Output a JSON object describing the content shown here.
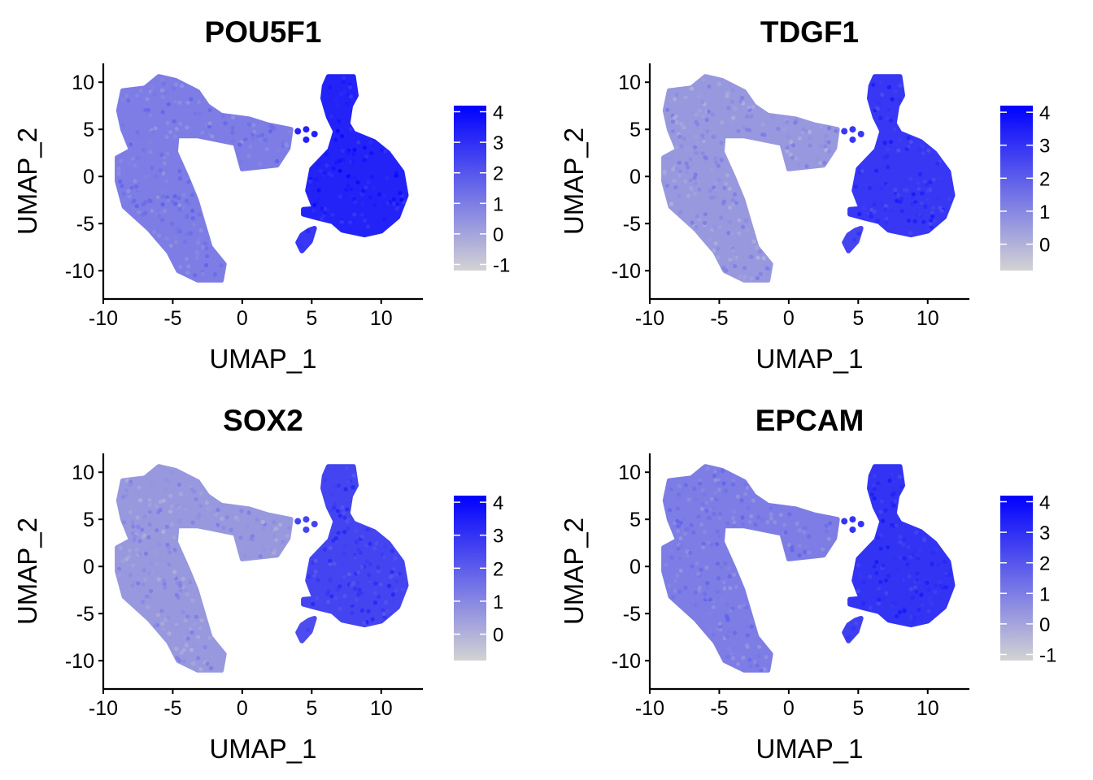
{
  "chart_data": [
    {
      "type": "scatter",
      "title": "POU5F1",
      "xlabel": "UMAP_1",
      "ylabel": "UMAP_2",
      "xlim": [
        -10,
        13
      ],
      "ylim": [
        -13,
        12
      ],
      "xticks": [
        -10,
        -5,
        0,
        5,
        10
      ],
      "yticks": [
        -10,
        -5,
        0,
        5,
        10
      ],
      "xtick_labels": [
        "-10",
        "-5",
        "0",
        "5",
        "10"
      ],
      "ytick_labels": [
        "-10",
        "-5",
        "0",
        "5",
        "10"
      ],
      "color_scale": {
        "low": "#d3d3d3",
        "high": "#0000ff",
        "min": -1.2,
        "max": 4.2
      },
      "legend_breaks": [
        -1,
        0,
        1,
        2,
        3,
        4
      ],
      "legend_labels": [
        "-1",
        "0",
        "1",
        "2",
        "3",
        "4"
      ],
      "cluster_levels": {
        "left": 1.0,
        "right": 3.3,
        "small": 2.8
      }
    },
    {
      "type": "scatter",
      "title": "TDGF1",
      "xlabel": "UMAP_1",
      "ylabel": "UMAP_2",
      "xlim": [
        -10,
        13
      ],
      "ylim": [
        -13,
        12
      ],
      "xticks": [
        -10,
        -5,
        0,
        5,
        10
      ],
      "yticks": [
        -10,
        -5,
        0,
        5,
        10
      ],
      "xtick_labels": [
        "-10",
        "-5",
        "0",
        "5",
        "10"
      ],
      "ytick_labels": [
        "-10",
        "-5",
        "0",
        "5",
        "10"
      ],
      "color_scale": {
        "low": "#d3d3d3",
        "high": "#0000ff",
        "min": -0.8,
        "max": 4.2
      },
      "legend_breaks": [
        0,
        1,
        2,
        3,
        4
      ],
      "legend_labels": [
        "0",
        "1",
        "2",
        "3",
        "4"
      ],
      "cluster_levels": {
        "left": 0.6,
        "right": 2.9,
        "small": 2.6
      }
    },
    {
      "type": "scatter",
      "title": "SOX2",
      "xlabel": "UMAP_1",
      "ylabel": "UMAP_2",
      "xlim": [
        -10,
        13
      ],
      "ylim": [
        -13,
        12
      ],
      "xticks": [
        -10,
        -5,
        0,
        5,
        10
      ],
      "yticks": [
        -10,
        -5,
        0,
        5,
        10
      ],
      "xtick_labels": [
        "-10",
        "-5",
        "0",
        "5",
        "10"
      ],
      "ytick_labels": [
        "-10",
        "-5",
        "0",
        "5",
        "10"
      ],
      "color_scale": {
        "low": "#d3d3d3",
        "high": "#0000ff",
        "min": -0.8,
        "max": 4.2
      },
      "legend_breaks": [
        0,
        1,
        2,
        3,
        4
      ],
      "legend_labels": [
        "0",
        "1",
        "2",
        "3",
        "4"
      ],
      "cluster_levels": {
        "left": 0.6,
        "right": 2.6,
        "small": 2.4
      }
    },
    {
      "type": "scatter",
      "title": "EPCAM",
      "xlabel": "UMAP_1",
      "ylabel": "UMAP_2",
      "xlim": [
        -10,
        13
      ],
      "ylim": [
        -13,
        12
      ],
      "xticks": [
        -10,
        -5,
        0,
        5,
        10
      ],
      "yticks": [
        -10,
        -5,
        0,
        5,
        10
      ],
      "xtick_labels": [
        "-10",
        "-5",
        "0",
        "5",
        "10"
      ],
      "ytick_labels": [
        "-10",
        "-5",
        "0",
        "5",
        "10"
      ],
      "color_scale": {
        "low": "#d3d3d3",
        "high": "#0000ff",
        "min": -1.2,
        "max": 4.2
      },
      "legend_breaks": [
        -1,
        0,
        1,
        2,
        3,
        4
      ],
      "legend_labels": [
        "-1",
        "0",
        "1",
        "2",
        "3",
        "4"
      ],
      "cluster_levels": {
        "left": 1.0,
        "right": 2.9,
        "small": 2.6
      }
    }
  ]
}
